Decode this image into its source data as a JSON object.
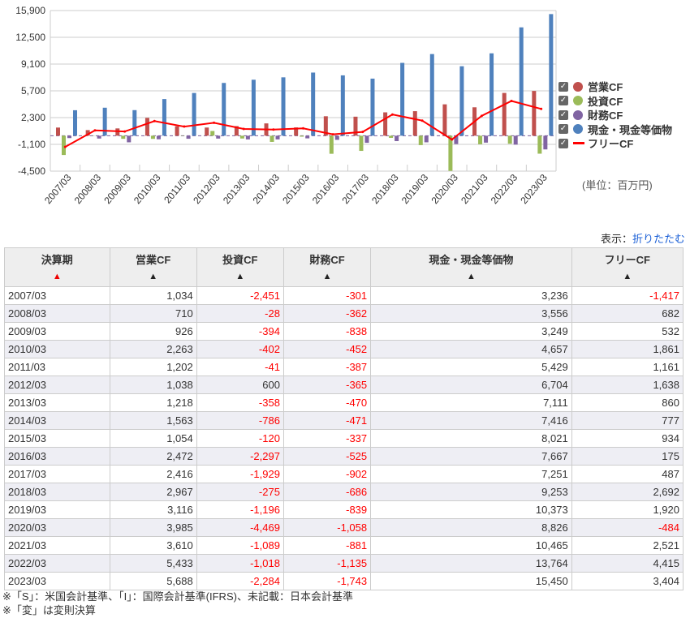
{
  "chart_data": {
    "type": "bar",
    "categories": [
      "2007/03",
      "2008/03",
      "2009/03",
      "2010/03",
      "2011/03",
      "2012/03",
      "2013/03",
      "2014/03",
      "2015/03",
      "2016/03",
      "2017/03",
      "2018/03",
      "2019/03",
      "2020/03",
      "2021/03",
      "2022/03",
      "2023/03"
    ],
    "yticks": [
      "15,900",
      "12,500",
      "9,100",
      "5,700",
      "2,300",
      "-1,100",
      "-4,500"
    ],
    "ytick_values": [
      15900,
      12500,
      9100,
      5700,
      2300,
      -1100,
      -4500
    ],
    "ylim": [
      -4500,
      15900
    ],
    "series": [
      {
        "name": "営業CF",
        "type": "bar",
        "color": "#c0504d",
        "values": [
          1034,
          710,
          926,
          2263,
          1202,
          1038,
          1218,
          1563,
          1054,
          2472,
          2416,
          2967,
          3116,
          3985,
          3610,
          5433,
          5688
        ]
      },
      {
        "name": "投資CF",
        "type": "bar",
        "color": "#9bbb59",
        "values": [
          -2451,
          -28,
          -394,
          -402,
          -41,
          600,
          -358,
          -786,
          -120,
          -2297,
          -1929,
          -275,
          -1196,
          -4469,
          -1089,
          -1018,
          -2284
        ]
      },
      {
        "name": "財務CF",
        "type": "bar",
        "color": "#8064a2",
        "values": [
          -301,
          -362,
          -838,
          -452,
          -387,
          -365,
          -470,
          -471,
          -337,
          -525,
          -902,
          -686,
          -839,
          -1058,
          -881,
          -1135,
          -1743
        ]
      },
      {
        "name": "現金・現金等価物",
        "type": "bar",
        "color": "#4f81bd",
        "values": [
          3236,
          3556,
          3249,
          4657,
          5429,
          6704,
          7111,
          7416,
          8021,
          7667,
          7251,
          9253,
          10373,
          8826,
          10465,
          13764,
          15450
        ]
      },
      {
        "name": "フリーCF",
        "type": "line",
        "color": "#ff0000",
        "values": [
          -1417,
          682,
          532,
          1861,
          1161,
          1638,
          860,
          777,
          934,
          175,
          487,
          2692,
          1920,
          -484,
          2521,
          4415,
          3404
        ]
      }
    ],
    "unit": "(単位：百万円)",
    "legend_position": "right"
  },
  "toggle": {
    "label": "表示：",
    "link": "折りたたむ"
  },
  "table": {
    "headers": [
      "決算期",
      "営業CF",
      "投資CF",
      "財務CF",
      "現金・現金等価物",
      "フリーCF"
    ],
    "rows": [
      [
        "2007/03",
        "1,034",
        "-2,451",
        "-301",
        "3,236",
        "-1,417"
      ],
      [
        "2008/03",
        "710",
        "-28",
        "-362",
        "3,556",
        "682"
      ],
      [
        "2009/03",
        "926",
        "-394",
        "-838",
        "3,249",
        "532"
      ],
      [
        "2010/03",
        "2,263",
        "-402",
        "-452",
        "4,657",
        "1,861"
      ],
      [
        "2011/03",
        "1,202",
        "-41",
        "-387",
        "5,429",
        "1,161"
      ],
      [
        "2012/03",
        "1,038",
        "600",
        "-365",
        "6,704",
        "1,638"
      ],
      [
        "2013/03",
        "1,218",
        "-358",
        "-470",
        "7,111",
        "860"
      ],
      [
        "2014/03",
        "1,563",
        "-786",
        "-471",
        "7,416",
        "777"
      ],
      [
        "2015/03",
        "1,054",
        "-120",
        "-337",
        "8,021",
        "934"
      ],
      [
        "2016/03",
        "2,472",
        "-2,297",
        "-525",
        "7,667",
        "175"
      ],
      [
        "2017/03",
        "2,416",
        "-1,929",
        "-902",
        "7,251",
        "487"
      ],
      [
        "2018/03",
        "2,967",
        "-275",
        "-686",
        "9,253",
        "2,692"
      ],
      [
        "2019/03",
        "3,116",
        "-1,196",
        "-839",
        "10,373",
        "1,920"
      ],
      [
        "2020/03",
        "3,985",
        "-4,469",
        "-1,058",
        "8,826",
        "-484"
      ],
      [
        "2021/03",
        "3,610",
        "-1,089",
        "-881",
        "10,465",
        "2,521"
      ],
      [
        "2022/03",
        "5,433",
        "-1,018",
        "-1,135",
        "13,764",
        "4,415"
      ],
      [
        "2023/03",
        "5,688",
        "-2,284",
        "-1,743",
        "15,450",
        "3,404"
      ]
    ]
  },
  "notes": [
    "※「S」：米国会計基準、「I」：国際会計基準(IFRS)、未記載：日本会計基準",
    "※「変」は変則決算"
  ]
}
